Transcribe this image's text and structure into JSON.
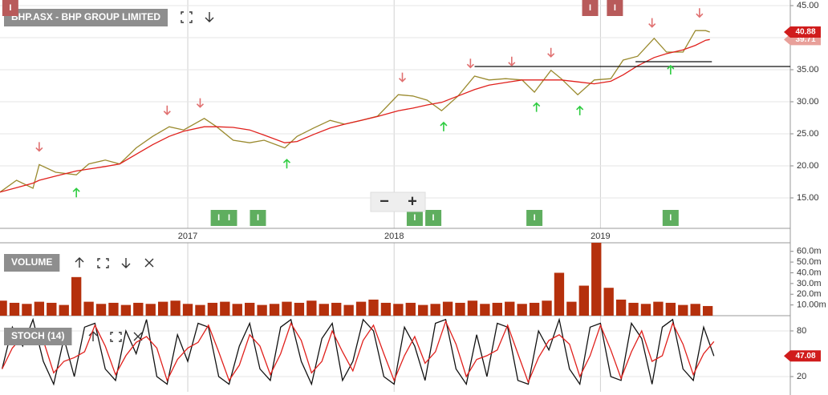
{
  "chart_data": [
    {
      "type": "line",
      "title": "BHP.ASX - BHP GROUP LIMITED",
      "x": [
        2016.09,
        2016.17,
        2016.25,
        2016.28,
        2016.36,
        2016.46,
        2016.52,
        2016.6,
        2016.67,
        2016.75,
        2016.83,
        2016.91,
        2016.98,
        2017.08,
        2017.14,
        2017.22,
        2017.3,
        2017.37,
        2017.47,
        2017.53,
        2017.61,
        2017.69,
        2017.76,
        2017.84,
        2017.92,
        2018.02,
        2018.09,
        2018.16,
        2018.23,
        2018.31,
        2018.39,
        2018.46,
        2018.54,
        2018.62,
        2018.68,
        2018.76,
        2018.81,
        2018.89,
        2018.97,
        2019.05,
        2019.11,
        2019.18,
        2019.26,
        2019.32,
        2019.4,
        2019.46,
        2019.51,
        2019.53
      ],
      "series": [
        {
          "color": "#9a8a2e",
          "values": [
            15.9,
            17.75,
            16.5,
            20.2,
            19,
            18.6,
            20.3,
            20.9,
            20.3,
            22.8,
            24.6,
            26.1,
            25.6,
            27.4,
            26.1,
            24,
            23.6,
            24,
            22.8,
            24.6,
            25.9,
            27.1,
            26.5,
            27.1,
            27.75,
            31.1,
            30.9,
            30.25,
            28.6,
            30.9,
            34,
            33.4,
            33.6,
            33.4,
            31.5,
            34.9,
            33.6,
            31.1,
            33.4,
            33.6,
            36.5,
            37.1,
            39.9,
            37.75,
            37.75,
            41.1,
            41.1,
            40.88
          ]
        },
        {
          "color": "#e0201c",
          "values": [
            15.9,
            16.6,
            17.3,
            17.75,
            18.4,
            19.2,
            19.5,
            19.9,
            20.3,
            21.8,
            23.3,
            24.6,
            25.4,
            26.1,
            26.1,
            26.0,
            25.6,
            24.8,
            23.6,
            23.8,
            24.9,
            25.9,
            26.5,
            27.1,
            27.7,
            28.6,
            29.0,
            29.5,
            29.9,
            30.9,
            31.9,
            32.6,
            33.0,
            33.4,
            33.4,
            33.4,
            33.4,
            33.1,
            32.8,
            33.2,
            34.2,
            35.6,
            36.9,
            37.5,
            38.1,
            38.8,
            39.6,
            39.71
          ]
        }
      ],
      "last_value_tags": [
        {
          "value": 39.71,
          "color": "#e8a09a"
        },
        {
          "value": 40.88,
          "color": "#d01c1c"
        }
      ],
      "levels": [
        {
          "value": 35.5,
          "from": 2018.39,
          "to": 2019.92
        },
        {
          "value": 36.25,
          "from": 2019.17,
          "to": 2019.54
        }
      ],
      "sell_signals": {
        "color": "#e07070",
        "x": [
          2016.28,
          2016.9,
          2017.06,
          2018.04,
          2018.37,
          2018.57,
          2018.76,
          2019.25,
          2019.48
        ]
      },
      "buy_signals": {
        "color": "#2ecc40",
        "x": [
          2016.46,
          2017.48,
          2018.24,
          2018.69,
          2018.9,
          2019.34
        ]
      },
      "event_label": "I",
      "top_events": {
        "color": "#b85a5a",
        "x": [
          2016.14,
          2018.95,
          2019.07
        ]
      },
      "bottom_events": {
        "color": "#5fae5f",
        "x": [
          2017.15,
          2017.2,
          2017.34,
          2018.1,
          2018.19,
          2018.68,
          2019.34
        ]
      },
      "controls": [
        "−",
        "+"
      ],
      "xlim": [
        2016.09,
        2019.92
      ],
      "xticks": [
        2017,
        2018,
        2019
      ],
      "ylim": [
        10.25,
        45.875
      ],
      "yticks": [
        {
          "value": 15,
          "label": "15.00"
        },
        {
          "value": 20,
          "label": "20.00"
        },
        {
          "value": 25,
          "label": "25.00"
        },
        {
          "value": 30,
          "label": "30.00"
        },
        {
          "value": 35,
          "label": "35.00"
        },
        {
          "value": 40,
          "label": "40.00"
        },
        {
          "value": 45,
          "label": "45.00"
        }
      ],
      "grid": true
    },
    {
      "type": "bar",
      "title": "VOLUME",
      "color": "#b5300c",
      "x": [
        2016.1,
        2016.16,
        2016.22,
        2016.28,
        2016.34,
        2016.4,
        2016.46,
        2016.52,
        2016.58,
        2016.64,
        2016.7,
        2016.76,
        2016.82,
        2016.88,
        2016.94,
        2017.0,
        2017.06,
        2017.12,
        2017.18,
        2017.24,
        2017.3,
        2017.36,
        2017.42,
        2017.48,
        2017.54,
        2017.6,
        2017.66,
        2017.72,
        2017.78,
        2017.84,
        2017.9,
        2017.96,
        2018.02,
        2018.08,
        2018.14,
        2018.2,
        2018.26,
        2018.32,
        2018.38,
        2018.44,
        2018.5,
        2018.56,
        2018.62,
        2018.68,
        2018.74,
        2018.8,
        2018.86,
        2018.92,
        2018.98,
        2019.04,
        2019.1,
        2019.16,
        2019.22,
        2019.28,
        2019.34,
        2019.4,
        2019.46,
        2019.52
      ],
      "values": [
        14,
        12,
        11,
        13,
        12,
        10,
        36,
        13,
        11,
        12,
        10,
        12,
        11,
        13,
        14,
        11,
        10,
        12,
        13,
        11,
        12,
        10,
        11,
        13,
        12,
        14,
        11,
        12,
        10,
        13,
        15,
        12,
        11,
        12,
        10,
        11,
        13,
        12,
        14,
        11,
        12,
        13,
        11,
        12,
        14,
        40,
        13,
        28,
        68,
        26,
        15,
        12,
        11,
        13,
        12,
        10,
        11,
        9
      ],
      "xlim": [
        2016.09,
        2019.92
      ],
      "ylim": [
        0,
        68
      ],
      "yticks": [
        {
          "value": 10,
          "label": "10.00m"
        },
        {
          "value": 20,
          "label": "20.0m"
        },
        {
          "value": 30,
          "label": "30.0m"
        },
        {
          "value": 40,
          "label": "40.0m"
        },
        {
          "value": 50,
          "label": "50.0m"
        },
        {
          "value": 60,
          "label": "60.0m"
        }
      ],
      "grid": false
    },
    {
      "type": "line",
      "title": "STOCH (14)",
      "x": [
        2016.1,
        2016.15,
        2016.2,
        2016.25,
        2016.3,
        2016.35,
        2016.4,
        2016.45,
        2016.5,
        2016.55,
        2016.6,
        2016.65,
        2016.7,
        2016.75,
        2016.8,
        2016.85,
        2016.9,
        2016.95,
        2017.0,
        2017.05,
        2017.1,
        2017.15,
        2017.2,
        2017.25,
        2017.3,
        2017.35,
        2017.4,
        2017.45,
        2017.5,
        2017.55,
        2017.6,
        2017.65,
        2017.7,
        2017.75,
        2017.8,
        2017.85,
        2017.9,
        2017.95,
        2018.0,
        2018.05,
        2018.1,
        2018.15,
        2018.2,
        2018.25,
        2018.3,
        2018.35,
        2018.4,
        2018.45,
        2018.5,
        2018.55,
        2018.6,
        2018.65,
        2018.7,
        2018.75,
        2018.8,
        2018.85,
        2018.9,
        2018.95,
        2019.0,
        2019.05,
        2019.1,
        2019.15,
        2019.2,
        2019.25,
        2019.3,
        2019.35,
        2019.4,
        2019.45,
        2019.5,
        2019.55
      ],
      "series": [
        {
          "color": "#111111",
          "values": [
            30,
            85,
            60,
            95,
            40,
            10,
            70,
            20,
            85,
            90,
            30,
            15,
            80,
            50,
            95,
            20,
            10,
            75,
            40,
            90,
            85,
            20,
            10,
            60,
            90,
            30,
            15,
            85,
            95,
            40,
            10,
            70,
            90,
            15,
            40,
            95,
            80,
            20,
            10,
            85,
            60,
            15,
            90,
            95,
            30,
            10,
            75,
            20,
            90,
            85,
            15,
            10,
            80,
            55,
            95,
            30,
            10,
            85,
            90,
            20,
            15,
            90,
            70,
            10,
            85,
            95,
            30,
            15,
            85,
            47.08
          ]
        },
        {
          "color": "#e0201c",
          "values": [
            30,
            57.5,
            72.5,
            77.5,
            67.5,
            25,
            40,
            45,
            52.5,
            87.5,
            60,
            22.5,
            47.5,
            65,
            72.5,
            57.5,
            15,
            42.5,
            57.5,
            65,
            87.5,
            52.5,
            15,
            35,
            75,
            60,
            22.5,
            50,
            90,
            67.5,
            25,
            40,
            80,
            52.5,
            27.5,
            67.5,
            87.5,
            50,
            15,
            47.5,
            72.5,
            37.5,
            52.5,
            92.5,
            62.5,
            20,
            42.5,
            47.5,
            55,
            87.5,
            50,
            12.5,
            45,
            67.5,
            75,
            62.5,
            20,
            47.5,
            87.5,
            55,
            17.5,
            52.5,
            80,
            40,
            47.5,
            90,
            62.5,
            22.5,
            50,
            66
          ]
        }
      ],
      "last_value_tags": [
        {
          "value": 47.08,
          "color": "#d01c1c"
        }
      ],
      "xlim": [
        2016.09,
        2019.92
      ],
      "ylim": [
        0,
        100
      ],
      "yticks": [
        20,
        80
      ],
      "grid": true
    }
  ]
}
